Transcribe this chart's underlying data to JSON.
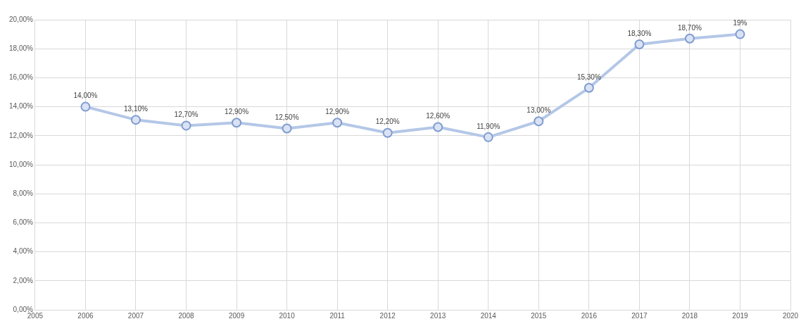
{
  "chart_data": {
    "type": "line",
    "x": [
      2006,
      2007,
      2008,
      2009,
      2010,
      2011,
      2012,
      2013,
      2014,
      2015,
      2016,
      2017,
      2018,
      2019
    ],
    "values": [
      14.0,
      13.1,
      12.7,
      12.9,
      12.5,
      12.9,
      12.2,
      12.6,
      11.9,
      13.0,
      15.3,
      18.3,
      18.7,
      19
    ],
    "value_labels": [
      "14,00%",
      "13,10%",
      "12,70%",
      "12,90%",
      "12,50%",
      "12,90%",
      "12,20%",
      "12,60%",
      "11,90%",
      "13,00%",
      "15,30%",
      "18,30%",
      "18,70%",
      "19%"
    ],
    "color": "#b4c7e7",
    "marker": "circle",
    "xlim": [
      2005,
      2020
    ],
    "xticks": [
      2005,
      2006,
      2007,
      2008,
      2009,
      2010,
      2011,
      2012,
      2013,
      2014,
      2015,
      2016,
      2017,
      2018,
      2019,
      2020
    ],
    "ylim": [
      0,
      20
    ],
    "yticks": [
      {
        "value": 0,
        "label": "0,00%"
      },
      {
        "value": 2,
        "label": "2,00%"
      },
      {
        "value": 4,
        "label": "4,00%"
      },
      {
        "value": 6,
        "label": "6,00%"
      },
      {
        "value": 8,
        "label": "8,00%"
      },
      {
        "value": 10,
        "label": "10,00%"
      },
      {
        "value": 12,
        "label": "12,00%"
      },
      {
        "value": 14,
        "label": "14,00%"
      },
      {
        "value": 16,
        "label": "16,00%"
      },
      {
        "value": 18,
        "label": "18,00%"
      },
      {
        "value": 20,
        "label": "20,00%"
      }
    ],
    "grid": true
  }
}
